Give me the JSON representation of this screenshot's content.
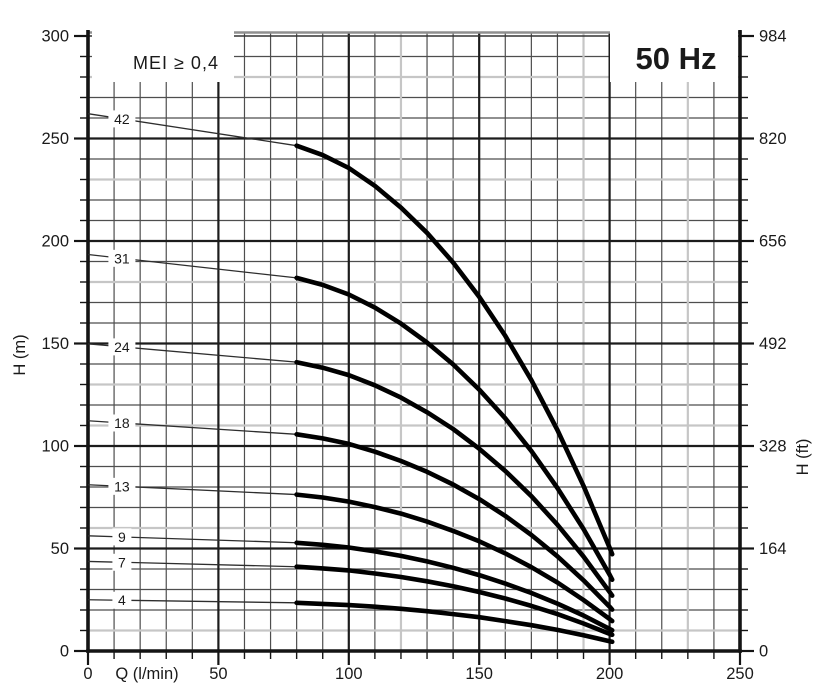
{
  "annotations": {
    "mei": "MEI ≥ 0,4",
    "frequency": "50 Hz"
  },
  "axes": {
    "x": {
      "title": "Q (l/min)",
      "min": 0,
      "max": 250,
      "major_ticks": [
        0,
        50,
        100,
        150,
        200,
        250
      ],
      "minor_step": 10
    },
    "y_left": {
      "title": "H (m)",
      "min": 0,
      "max": 300,
      "major_ticks": [
        300,
        250,
        200,
        150,
        100,
        50,
        0
      ],
      "minor_step": 10
    },
    "y_right": {
      "title": "H (ft)",
      "min": 0,
      "max": 984,
      "major_ticks": [
        984,
        820,
        656,
        492,
        328,
        164,
        0
      ]
    }
  },
  "chart_data": {
    "type": "line",
    "title": "50 Hz",
    "annotation": "MEI ≥ 0,4",
    "xlabel": "Q (l/min)",
    "ylabel_left": "H (m)",
    "ylabel_right": "H (ft)",
    "xlim": [
      0,
      250
    ],
    "ylim_m": [
      0,
      300
    ],
    "ylim_ft": [
      0,
      984
    ],
    "grid": true,
    "legend": "curve labels are number of pump stages, shown on each curve near the y-axis",
    "flow_lmin": [
      0,
      80,
      90,
      100,
      110,
      120,
      130,
      140,
      150,
      160,
      170,
      180,
      190,
      200,
      201
    ],
    "thick_from_q": 80,
    "label_q": 13,
    "series": [
      {
        "name": "42",
        "heads_m": [
          262.1,
          246.5,
          241.9,
          235.6,
          226.9,
          216.3,
          204.0,
          189.5,
          172.8,
          153.7,
          132.1,
          107.8,
          80.6,
          50.4,
          47.2
        ]
      },
      {
        "name": "31",
        "heads_m": [
          193.4,
          182.0,
          178.6,
          173.9,
          167.5,
          159.7,
          150.5,
          139.8,
          127.5,
          113.5,
          97.5,
          79.5,
          59.5,
          37.2,
          34.8
        ]
      },
      {
        "name": "24",
        "heads_m": [
          149.8,
          140.9,
          138.2,
          134.6,
          129.6,
          123.6,
          116.5,
          108.3,
          98.7,
          87.8,
          75.5,
          61.6,
          46.1,
          28.8,
          27.0
        ]
      },
      {
        "name": "18",
        "heads_m": [
          112.3,
          105.7,
          103.7,
          101.0,
          97.2,
          92.7,
          87.4,
          81.2,
          74.1,
          65.9,
          56.6,
          46.2,
          34.5,
          21.6,
          20.2
        ]
      },
      {
        "name": "13",
        "heads_m": [
          81.1,
          76.3,
          74.9,
          72.9,
          70.2,
          67.0,
          63.1,
          58.6,
          53.5,
          47.6,
          40.9,
          33.4,
          24.9,
          15.6,
          14.6
        ]
      },
      {
        "name": "9",
        "heads_m": [
          56.2,
          52.8,
          51.8,
          50.5,
          48.6,
          46.4,
          43.7,
          40.6,
          37.0,
          32.9,
          28.3,
          23.1,
          17.3,
          10.8,
          10.1
        ]
      },
      {
        "name": "7",
        "heads_m": [
          43.7,
          41.1,
          40.3,
          39.3,
          37.8,
          36.1,
          34.0,
          31.6,
          28.8,
          25.6,
          22.0,
          18.0,
          13.4,
          8.4,
          7.9
        ]
      },
      {
        "name": "4",
        "heads_m": [
          25.0,
          23.5,
          23.0,
          22.4,
          21.6,
          20.6,
          19.4,
          18.0,
          16.5,
          14.6,
          12.6,
          10.3,
          7.7,
          4.8,
          4.5
        ]
      }
    ]
  },
  "colors": {
    "curve": "#000000",
    "leader_line": "#2e2e2e",
    "grid_minor": "#4e4e4e",
    "grid_major": "#1c1c1c",
    "grid_light": "#c6c6c6",
    "spine": "#141414",
    "spine_top": "#8f8f8f",
    "text": "#1a1a1a",
    "box_bg": "#ffffff"
  }
}
